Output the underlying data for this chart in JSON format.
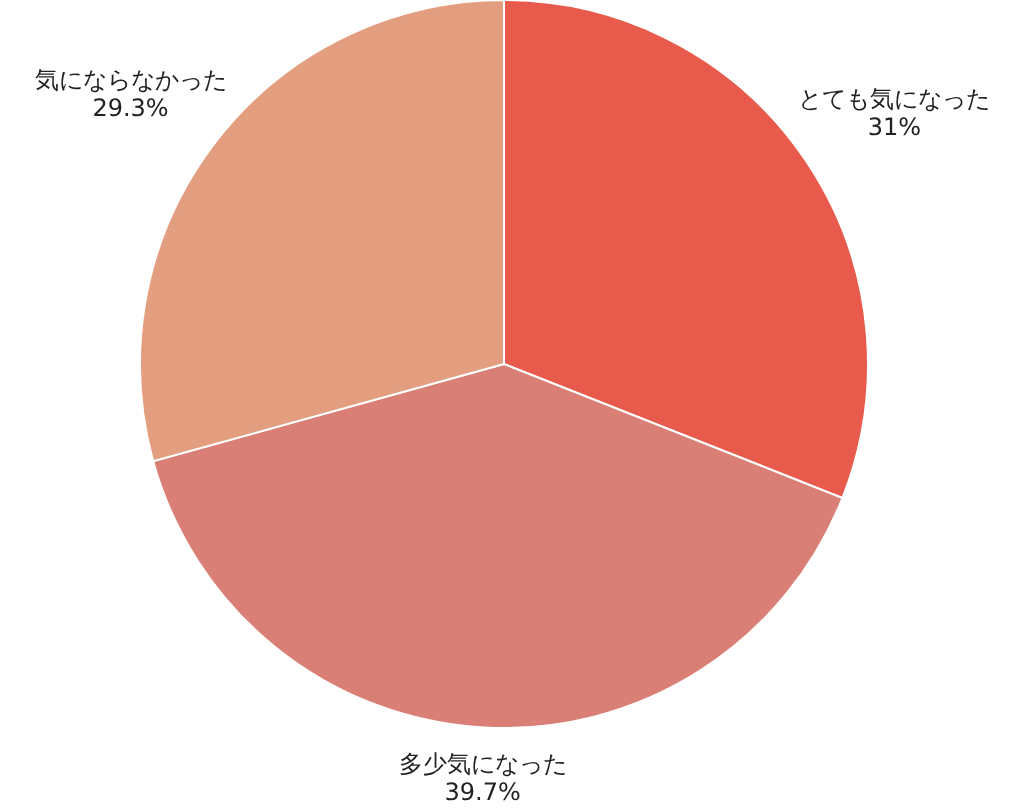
{
  "chart_data": {
    "type": "pie",
    "categories": [
      "とても気になった",
      "多少気になった",
      "気にならなかった"
    ],
    "values": [
      31,
      39.7,
      29.3
    ],
    "colors": [
      "#e85b4c",
      "#d97f76",
      "#e39e7f"
    ],
    "value_labels": [
      "31%",
      "39.7%",
      "29.3%"
    ]
  }
}
